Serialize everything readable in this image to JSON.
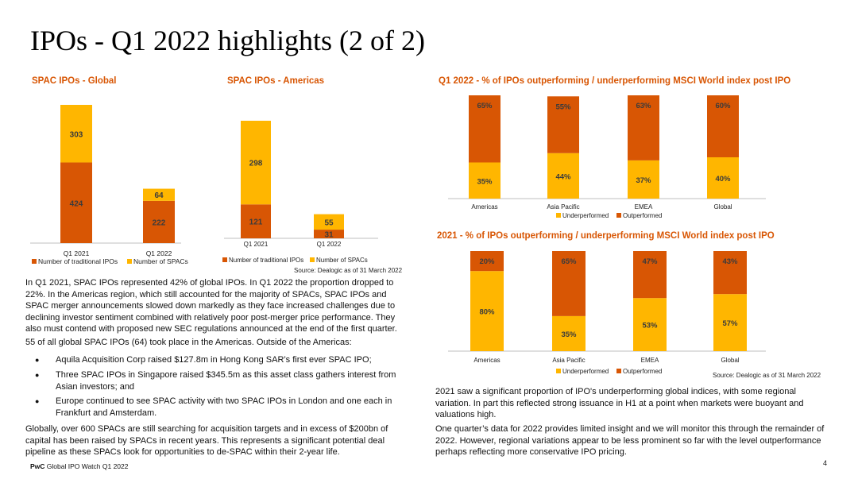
{
  "page": {
    "title": "IPOs - Q1 2022 highlights (2 of 2)",
    "footer_brand": "PwC",
    "footer_text": "Global IPO Watch Q1 2022",
    "page_number": "4"
  },
  "colors": {
    "traditional": "#d85604",
    "spac": "#ffb600",
    "under": "#ffb600",
    "out": "#d85604",
    "accent": "#d85604"
  },
  "chart_data": [
    {
      "id": "spac_global",
      "type": "bar",
      "stacked": true,
      "title": "SPAC IPOs - Global",
      "categories": [
        "Q1 2021",
        "Q1 2022"
      ],
      "series": [
        {
          "name": "Number of traditional IPOs",
          "values": [
            424,
            222
          ],
          "color": "#d85604"
        },
        {
          "name": "Number of SPACs",
          "values": [
            303,
            64
          ],
          "color": "#ffb600"
        }
      ],
      "legend": "bottom"
    },
    {
      "id": "spac_americas",
      "type": "bar",
      "stacked": true,
      "title": "SPAC IPOs - Americas",
      "categories": [
        "Q1 2021",
        "Q1 2022"
      ],
      "series": [
        {
          "name": "Number of traditional IPOs",
          "values": [
            121,
            31
          ],
          "color": "#d85604"
        },
        {
          "name": "Number of SPACs",
          "values": [
            298,
            55
          ],
          "color": "#ffb600"
        }
      ],
      "legend": "bottom",
      "source": "Source: Dealogic as of 31 March 2022"
    },
    {
      "id": "perf_q1_2022",
      "type": "bar",
      "stacked": true,
      "title": "Q1 2022 - % of IPOs outperforming / underperforming MSCI World index post IPO",
      "categories": [
        "Americas",
        "Asia Pacific",
        "EMEA",
        "Global"
      ],
      "series": [
        {
          "name": "Underperformed",
          "values": [
            35,
            44,
            37,
            40
          ],
          "labels": [
            "35%",
            "44%",
            "37%",
            "40%"
          ],
          "color": "#ffb600"
        },
        {
          "name": "Outperformed",
          "values": [
            65,
            55,
            63,
            60
          ],
          "labels": [
            "65%",
            "55%",
            "63%",
            "60%"
          ],
          "color": "#d85604"
        }
      ],
      "legend": "bottom"
    },
    {
      "id": "perf_2021",
      "type": "bar",
      "stacked": true,
      "title": "2021 - % of IPOs outperforming / underperforming MSCI World index post IPO",
      "categories": [
        "Americas",
        "Asia Pacific",
        "EMEA",
        "Global"
      ],
      "series": [
        {
          "name": "Underperformed",
          "values": [
            80,
            35,
            53,
            57
          ],
          "labels": [
            "80%",
            "35%",
            "53%",
            "57%"
          ],
          "color": "#ffb600"
        },
        {
          "name": "Outperformed",
          "values": [
            20,
            65,
            47,
            43
          ],
          "labels": [
            "20%",
            "65%",
            "47%",
            "43%"
          ],
          "color": "#d85604"
        }
      ],
      "legend": "bottom",
      "source": "Source: Dealogic as of 31 March 2022"
    }
  ],
  "text": {
    "left_p1": "In Q1 2021, SPAC IPOs represented 42% of global IPOs. In Q1 2022 the proportion dropped to 22%. In the Americas region, which still accounted for the majority of SPACs, SPAC IPOs and SPAC merger announcements slowed down markedly as they face increased challenges due to declining investor sentiment combined with relatively poor post-merger price performance. They also must contend with proposed new SEC regulations announced at the end of the first quarter.",
    "left_p2": "55 of all global SPAC IPOs (64) took place in the Americas. Outside of the Americas:",
    "bullet_glyph": "●",
    "bullets": [
      "Aquila Acquisition Corp raised $127.8m in Hong Kong SAR’s first ever SPAC IPO;",
      "Three SPAC IPOs in Singapore raised $345.5m as this asset class gathers interest from Asian investors; and",
      "Europe continued to see SPAC activity with two SPAC IPOs in London and one each in Frankfurt and Amsterdam."
    ],
    "left_p3": "Globally, over 600 SPACs are still searching for acquisition targets and in excess of $200bn of capital has been raised by SPACs in recent years. This represents a significant potential deal pipeline as these SPACs look for opportunities to de-SPAC within their 2-year life.",
    "right_p1": "2021 saw a significant proportion of IPO's underperforming global indices, with some regional variation. In part this reflected strong issuance in H1 at a point when markets were buoyant and valuations high.",
    "right_p2": "One quarter’s data for 2022 provides limited insight and we will monitor this through the remainder of 2022. However, regional variations appear to be less prominent so far with the level outperformance perhaps reflecting more conservative IPO pricing."
  }
}
